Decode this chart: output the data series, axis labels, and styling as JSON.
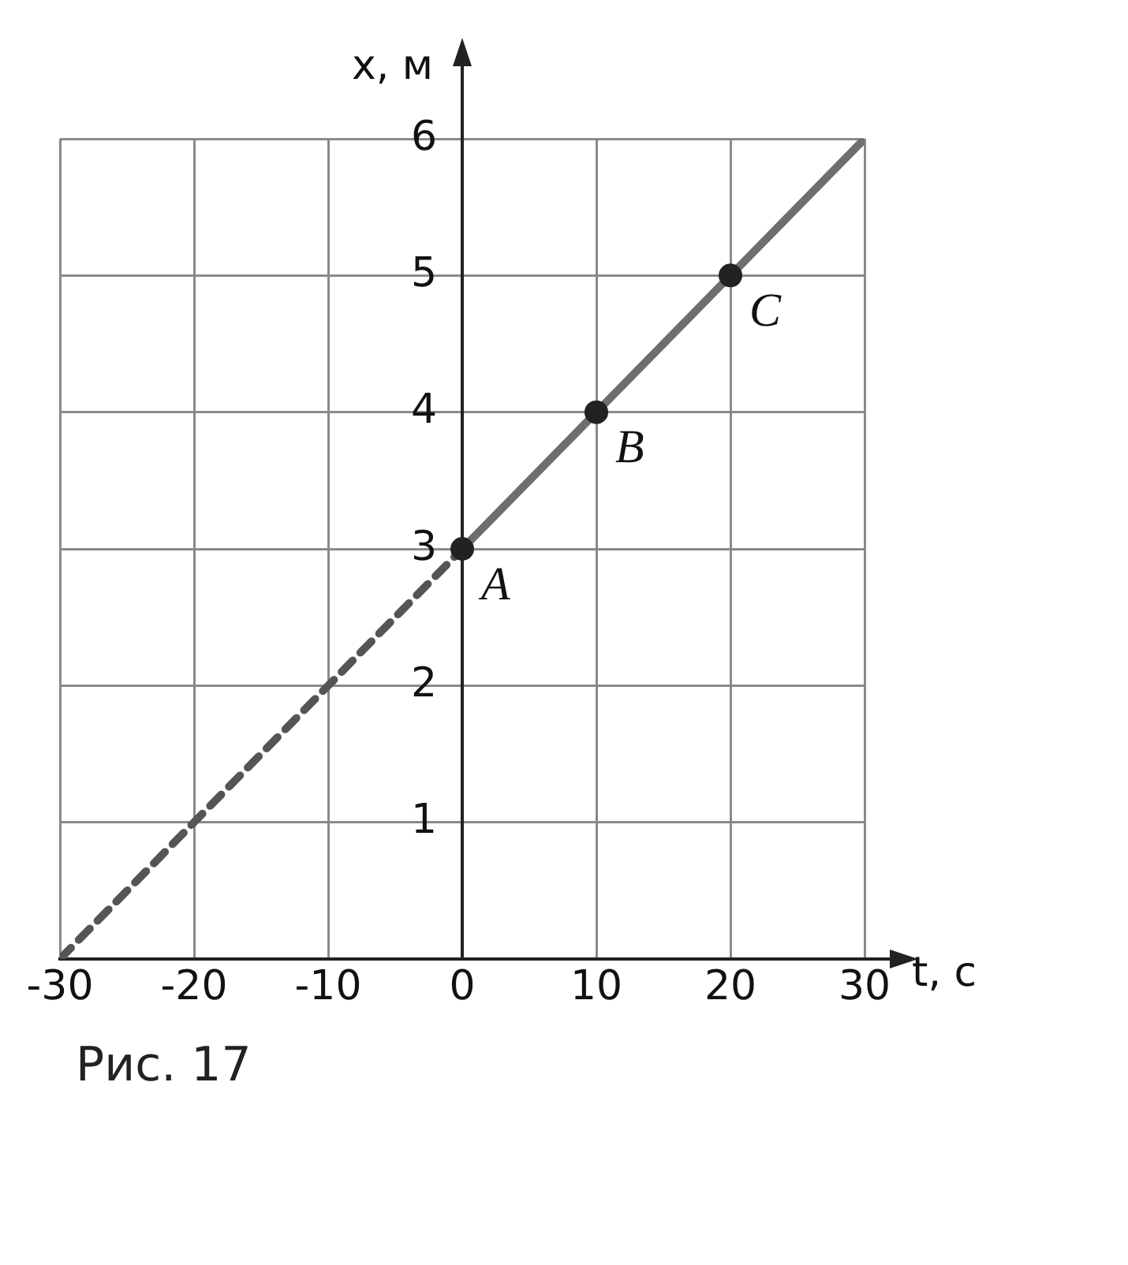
{
  "chart_data": {
    "type": "line",
    "xlabel": "t, с",
    "ylabel": "x, м",
    "xlim": [
      -30,
      30
    ],
    "ylim": [
      0,
      6
    ],
    "xticks": [
      -30,
      -20,
      -10,
      0,
      10,
      20,
      30
    ],
    "yticks": [
      {
        "value": 0,
        "label": null
      },
      1,
      2,
      3,
      4,
      5,
      6
    ],
    "grid": true,
    "legend": false,
    "series": [
      {
        "type": "line",
        "x": [
          0,
          30
        ],
        "values": [
          3,
          6
        ],
        "color": "#6e6e6e",
        "line_style": "solid",
        "marker": "none"
      },
      {
        "type": "line",
        "x": [
          -30,
          0
        ],
        "values": [
          0,
          3
        ],
        "color": "#555555",
        "line_style": "dashed",
        "marker": "none"
      },
      {
        "type": "scatter",
        "x": [
          0,
          10,
          20
        ],
        "values": [
          3,
          4,
          5
        ],
        "color": "#222222",
        "marker": "circle"
      }
    ],
    "annotations": [
      {
        "text": "A",
        "x": 0,
        "y": 3
      },
      {
        "text": "B",
        "x": 10,
        "y": 4
      },
      {
        "text": "C",
        "x": 20,
        "y": 5
      },
      "Рис. 17"
    ]
  }
}
